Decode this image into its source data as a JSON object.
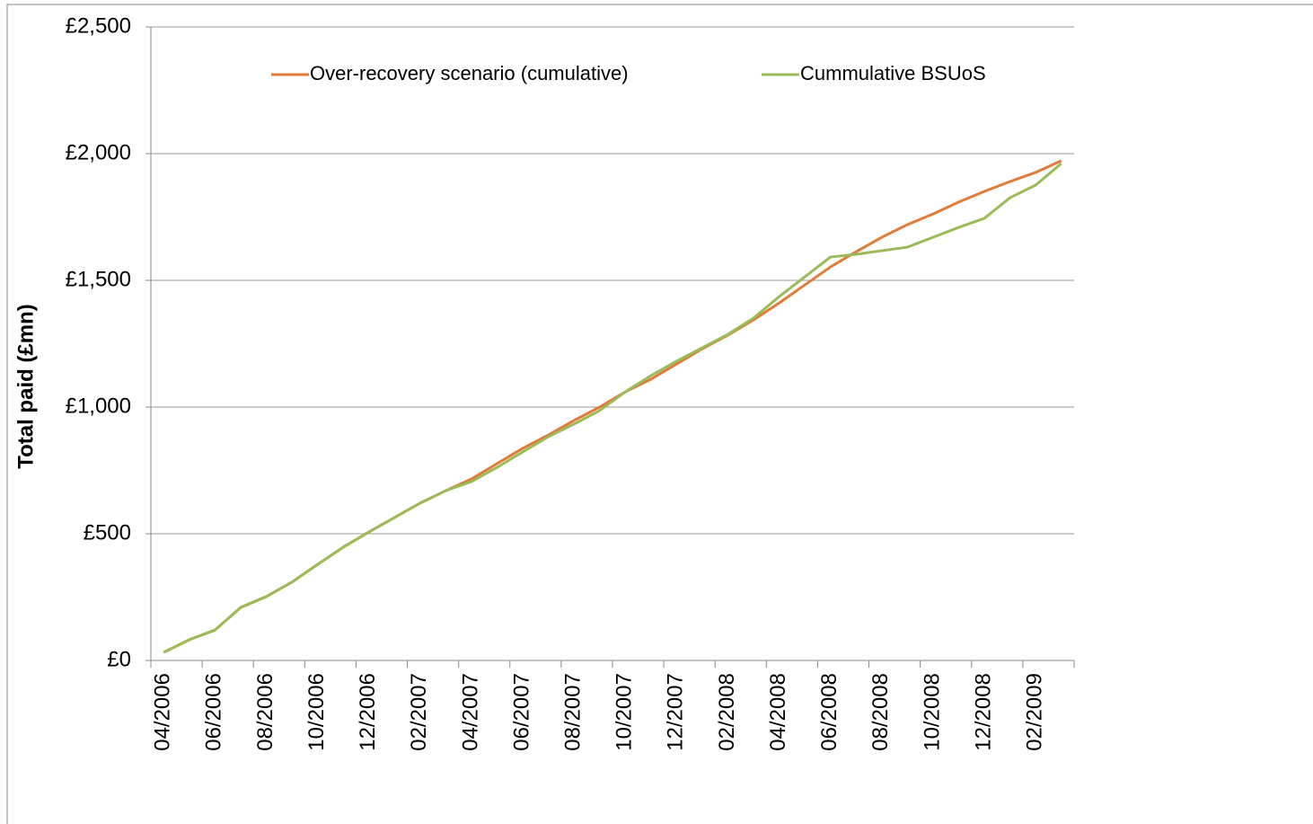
{
  "chart_data": {
    "type": "line",
    "y_label": "Total paid (£mn)",
    "categories": [
      "04/2006",
      null,
      "06/2006",
      null,
      "08/2006",
      null,
      "10/2006",
      null,
      "12/2006",
      null,
      "02/2007",
      null,
      "04/2007",
      null,
      "06/2007",
      null,
      "08/2007",
      null,
      "10/2007",
      null,
      "12/2007",
      null,
      "02/2008",
      null,
      "04/2008",
      null,
      "06/2008",
      null,
      "08/2008",
      null,
      "10/2008",
      null,
      "12/2008",
      null,
      "02/2009",
      null
    ],
    "series": [
      {
        "name": "Over-recovery scenario (cumulative)",
        "color": "#e07b39",
        "values": [
          32,
          82,
          120,
          209,
          252,
          309,
          379,
          447,
          507,
          564,
          621,
          670,
          716,
          777,
          837,
          890,
          947,
          1000,
          1060,
          1110,
          1170,
          1230,
          1284,
          1344,
          1411,
          1482,
          1553,
          1613,
          1670,
          1720,
          1762,
          1809,
          1851,
          1890,
          1926,
          1972
        ]
      },
      {
        "name": "Cummulative BSUoS",
        "color": "#9bbb59",
        "values": [
          32,
          82,
          120,
          209,
          252,
          309,
          379,
          447,
          507,
          564,
          621,
          670,
          706,
          762,
          823,
          883,
          933,
          986,
          1060,
          1124,
          1181,
          1234,
          1287,
          1351,
          1436,
          1514,
          1592,
          1603,
          1617,
          1631,
          1670,
          1709,
          1745,
          1826,
          1876,
          1961
        ]
      }
    ],
    "ylim": [
      0,
      2500
    ],
    "yticks": [
      {
        "value": 0,
        "label": "£0"
      },
      {
        "value": 500,
        "label": "£500"
      },
      {
        "value": 1000,
        "label": "£1,000"
      },
      {
        "value": 1500,
        "label": "£1,500"
      },
      {
        "value": 2000,
        "label": "£2,000"
      },
      {
        "value": 2500,
        "label": "£2,500"
      }
    ],
    "grid": true,
    "legend": "top"
  }
}
